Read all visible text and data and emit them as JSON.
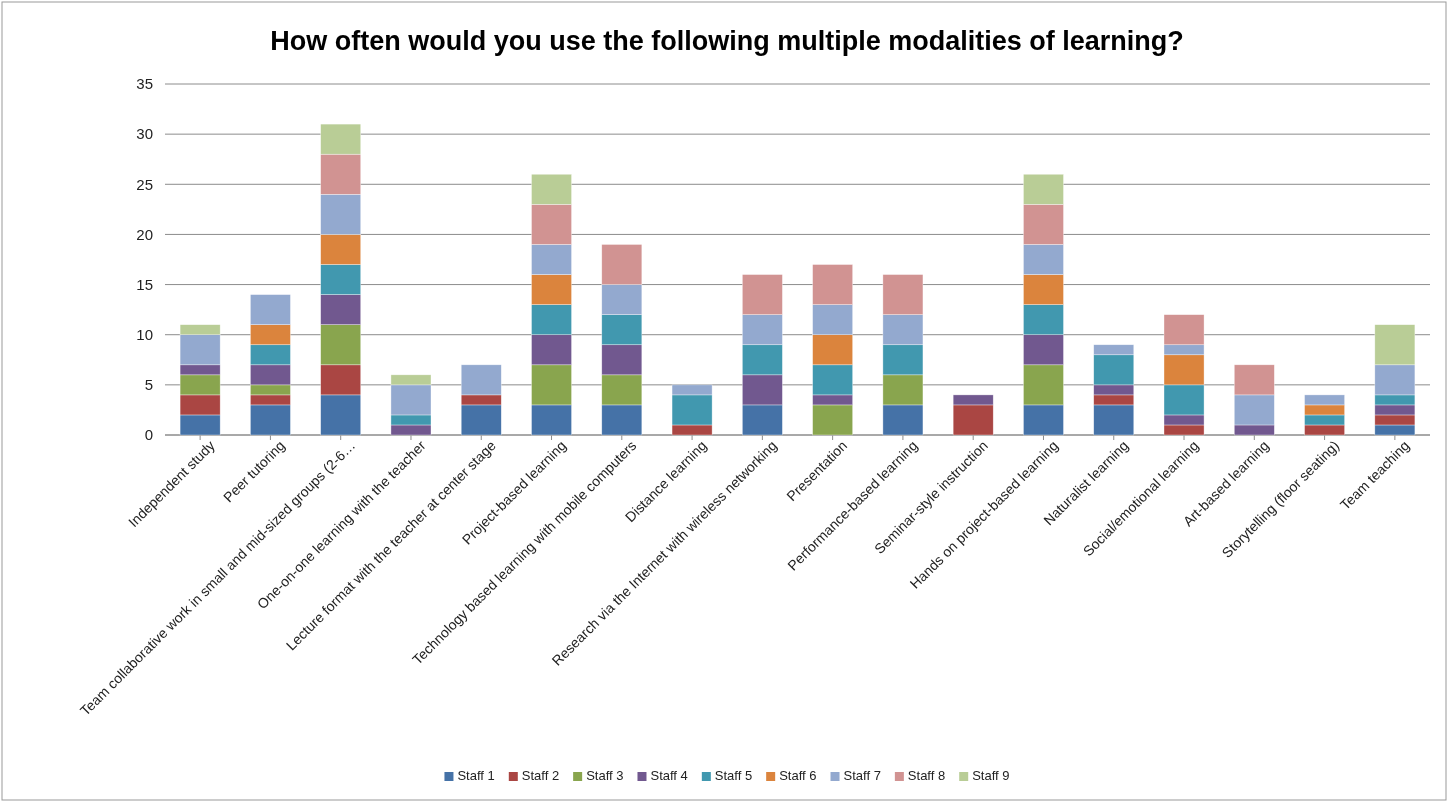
{
  "chart_data": {
    "type": "bar",
    "title": "How often would you use the following multiple modalities of learning?",
    "stacked": true,
    "grid": "y",
    "legend": "bottom",
    "ylim": [
      0,
      35
    ],
    "yticks": [
      0,
      5,
      10,
      15,
      20,
      25,
      30,
      35
    ],
    "categories": [
      "Independent study",
      "Peer tutoring",
      "Team collaborative work in small and mid-sized groups (2-6…",
      "One-on-one learning with the teacher",
      "Lecture format with the teacher at center stage",
      "Project-based learning",
      "Technology based learning with mobile computers",
      "Distance learning",
      "Research via the Internet with wireless networking",
      "Presentation",
      "Performance-based learning",
      "Seminar-style instruction",
      "Hands on project-based learning",
      "Naturalist learning",
      "Social/emotional learning",
      "Art-based learning",
      "Storytelling (floor seating)",
      "Team teaching"
    ],
    "series": [
      {
        "name": "Staff 1",
        "color": "#4572a7",
        "values": [
          2,
          3,
          4,
          0,
          3,
          3,
          3,
          0,
          3,
          0,
          3,
          0,
          3,
          3,
          0,
          0,
          0,
          1
        ]
      },
      {
        "name": "Staff 2",
        "color": "#aa4643",
        "values": [
          2,
          1,
          3,
          0,
          1,
          0,
          0,
          1,
          0,
          0,
          0,
          3,
          0,
          1,
          1,
          0,
          1,
          1
        ]
      },
      {
        "name": "Staff 3",
        "color": "#89a54e",
        "values": [
          2,
          1,
          4,
          0,
          0,
          4,
          3,
          0,
          0,
          3,
          3,
          0,
          4,
          0,
          0,
          0,
          0,
          0
        ]
      },
      {
        "name": "Staff 4",
        "color": "#71588f",
        "values": [
          1,
          2,
          3,
          1,
          0,
          3,
          3,
          0,
          3,
          1,
          0,
          1,
          3,
          1,
          1,
          1,
          0,
          1
        ]
      },
      {
        "name": "Staff 5",
        "color": "#4198af",
        "values": [
          0,
          2,
          3,
          1,
          0,
          3,
          3,
          3,
          3,
          3,
          3,
          0,
          3,
          3,
          3,
          0,
          1,
          1
        ]
      },
      {
        "name": "Staff 6",
        "color": "#db843d",
        "values": [
          0,
          2,
          3,
          0,
          0,
          3,
          0,
          0,
          0,
          3,
          0,
          0,
          3,
          0,
          3,
          0,
          1,
          0
        ]
      },
      {
        "name": "Staff 7",
        "color": "#93a9cf",
        "values": [
          3,
          3,
          4,
          3,
          3,
          3,
          3,
          1,
          3,
          3,
          3,
          0,
          3,
          1,
          1,
          3,
          1,
          3
        ]
      },
      {
        "name": "Staff 8",
        "color": "#d19392",
        "values": [
          0,
          0,
          4,
          0,
          0,
          4,
          4,
          0,
          4,
          4,
          4,
          0,
          4,
          0,
          3,
          3,
          0,
          0
        ]
      },
      {
        "name": "Staff 9",
        "color": "#b9cd96",
        "values": [
          1,
          0,
          3,
          1,
          0,
          3,
          0,
          0,
          0,
          0,
          0,
          0,
          3,
          0,
          0,
          0,
          0,
          4
        ]
      }
    ]
  }
}
